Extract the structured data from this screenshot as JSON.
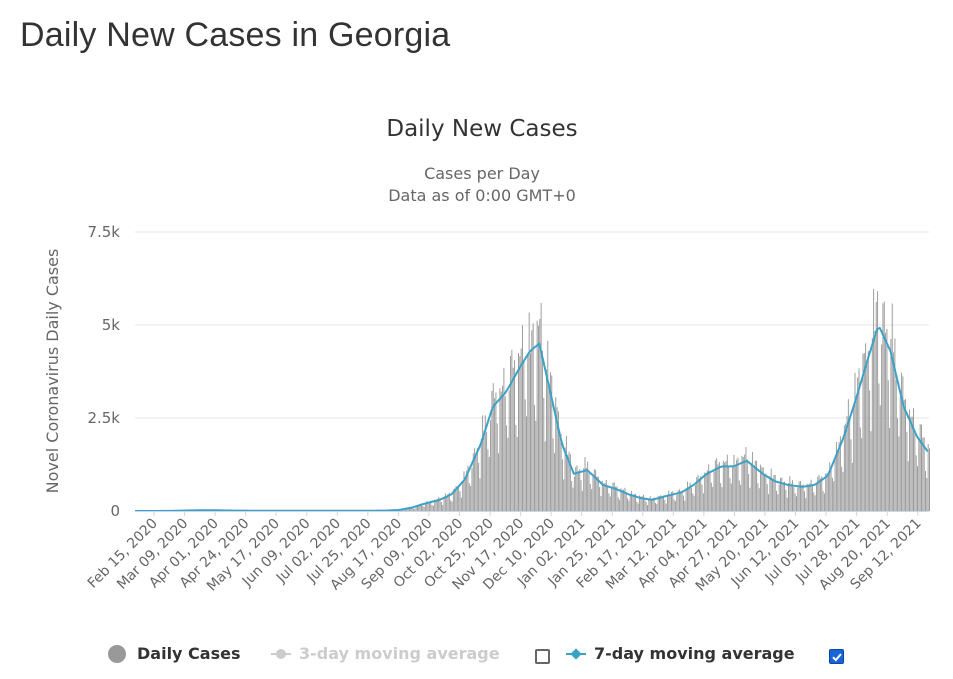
{
  "page": {
    "title": "Daily New Cases in Georgia"
  },
  "chart_data": {
    "type": "bar",
    "title": "Daily New Cases",
    "subtitle_lines": [
      "Cases per Day",
      "Data as of 0:00 GMT+0"
    ],
    "xlabel": "",
    "ylabel": "Novel Coronavirus Daily Cases",
    "x_range": [
      "2020-02-15",
      "2021-10-04"
    ],
    "ylim": [
      0,
      7500
    ],
    "y_ticks": [
      0,
      2500,
      5000,
      7500
    ],
    "y_tick_labels": [
      "0",
      "2.5k",
      "5k",
      "7.5k"
    ],
    "x_tick_labels": [
      "Feb 15, 2020",
      "Mar 09, 2020",
      "Apr 01, 2020",
      "Apr 24, 2020",
      "May 17, 2020",
      "Jun 09, 2020",
      "Jul 02, 2020",
      "Jul 25, 2020",
      "Aug 17, 2020",
      "Sep 09, 2020",
      "Oct 02, 2020",
      "Oct 25, 2020",
      "Nov 17, 2020",
      "Dec 10, 2020",
      "Jan 02, 2021",
      "Jan 25, 2021",
      "Feb 17, 2021",
      "Mar 12, 2021",
      "Apr 04, 2021",
      "Apr 27, 2021",
      "May 20, 2021",
      "Jun 12, 2021",
      "Jul 05, 2021",
      "Jul 28, 2021",
      "Aug 20, 2021",
      "Sep 12, 2021"
    ],
    "grid": true,
    "legend_position": "bottom",
    "series": [
      {
        "name": "Daily Cases",
        "type": "bar",
        "color": "#999999",
        "x": [
          "2020-02-15",
          "2020-03-01",
          "2020-03-15",
          "2020-04-01",
          "2020-04-15",
          "2020-05-01",
          "2020-06-01",
          "2020-07-01",
          "2020-08-01",
          "2020-08-20",
          "2020-09-01",
          "2020-09-10",
          "2020-09-20",
          "2020-10-01",
          "2020-10-10",
          "2020-10-20",
          "2020-11-01",
          "2020-11-10",
          "2020-11-20",
          "2020-12-01",
          "2020-12-08",
          "2020-12-15",
          "2020-12-22",
          "2021-01-01",
          "2021-01-10",
          "2021-01-20",
          "2021-02-01",
          "2021-02-10",
          "2021-02-20",
          "2021-03-01",
          "2021-03-10",
          "2021-03-20",
          "2021-04-01",
          "2021-04-10",
          "2021-04-20",
          "2021-05-01",
          "2021-05-10",
          "2021-05-20",
          "2021-06-01",
          "2021-06-10",
          "2021-06-20",
          "2021-07-01",
          "2021-07-10",
          "2021-07-20",
          "2021-08-01",
          "2021-08-10",
          "2021-08-20",
          "2021-08-27",
          "2021-09-05",
          "2021-09-15",
          "2021-09-25",
          "2021-10-04"
        ],
        "values": [
          0,
          0,
          5,
          20,
          20,
          10,
          5,
          5,
          5,
          10,
          30,
          90,
          200,
          300,
          450,
          850,
          1800,
          2800,
          3200,
          3900,
          4300,
          4500,
          3400,
          1800,
          1000,
          1100,
          700,
          600,
          450,
          350,
          300,
          400,
          500,
          700,
          1000,
          1200,
          1200,
          1350,
          1000,
          800,
          700,
          650,
          700,
          950,
          2000,
          3000,
          4200,
          5000,
          4300,
          2800,
          2000,
          1550
        ]
      },
      {
        "name": "3-day moving average",
        "type": "line",
        "color": "#cccccc",
        "visible": false
      },
      {
        "name": "7-day moving average",
        "type": "line",
        "color": "#3ba1c7",
        "x": [
          "2020-02-15",
          "2020-03-01",
          "2020-03-15",
          "2020-04-01",
          "2020-04-15",
          "2020-05-01",
          "2020-06-01",
          "2020-07-01",
          "2020-08-01",
          "2020-08-20",
          "2020-09-01",
          "2020-09-10",
          "2020-09-20",
          "2020-10-01",
          "2020-10-10",
          "2020-10-20",
          "2020-11-01",
          "2020-11-10",
          "2020-11-20",
          "2020-12-01",
          "2020-12-08",
          "2020-12-15",
          "2020-12-22",
          "2021-01-01",
          "2021-01-10",
          "2021-01-20",
          "2021-02-01",
          "2021-02-10",
          "2021-02-20",
          "2021-03-01",
          "2021-03-10",
          "2021-03-20",
          "2021-04-01",
          "2021-04-10",
          "2021-04-20",
          "2021-05-01",
          "2021-05-10",
          "2021-05-20",
          "2021-06-01",
          "2021-06-10",
          "2021-06-20",
          "2021-07-01",
          "2021-07-10",
          "2021-07-20",
          "2021-08-01",
          "2021-08-10",
          "2021-08-20",
          "2021-08-27",
          "2021-09-05",
          "2021-09-15",
          "2021-09-25",
          "2021-10-04"
        ],
        "values": [
          0,
          0,
          5,
          20,
          20,
          10,
          5,
          5,
          5,
          10,
          30,
          90,
          200,
          300,
          450,
          850,
          1800,
          2800,
          3200,
          3900,
          4300,
          4500,
          3400,
          1800,
          1000,
          1100,
          700,
          600,
          450,
          350,
          300,
          400,
          500,
          700,
          1000,
          1200,
          1200,
          1350,
          1000,
          800,
          700,
          650,
          700,
          950,
          2000,
          3000,
          4200,
          5000,
          4300,
          2800,
          2000,
          1550
        ]
      }
    ]
  },
  "legend": {
    "daily_label": "Daily Cases",
    "avg3_label": "3-day moving average",
    "avg3_checked": false,
    "avg7_label": "7-day moving average",
    "avg7_checked": true
  },
  "colors": {
    "bar": "#999999",
    "avg7": "#3ba1c7",
    "avg3": "#cccccc",
    "grid": "#e6e6e6",
    "checkbox": "#1565d8"
  }
}
